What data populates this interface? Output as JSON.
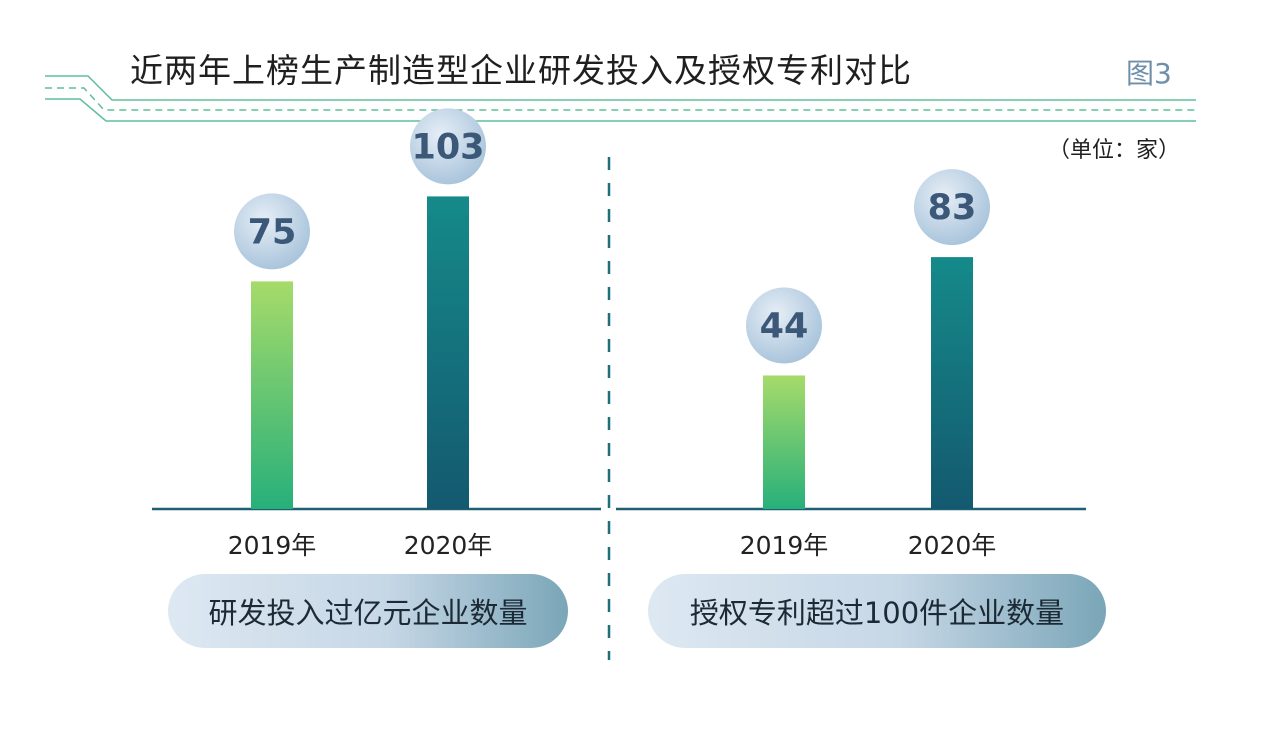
{
  "header": {
    "title": "近两年上榜生产制造型企业研发投入及授权专利对比",
    "figure_label": "图3",
    "unit": "（单位：家）"
  },
  "colors": {
    "bar_2019_top": "#a6db6a",
    "bar_2019_bottom": "#27b07a",
    "bar_2020_top": "#158a8a",
    "bar_2020_bottom": "#14596f",
    "bubble_light": "#e6eef6",
    "bubble_dark": "#a6c2da",
    "value_text": "#3b5878",
    "baseline": "#1d5f73",
    "divider": "#1d6f7a",
    "header_line": "#5fbf9a"
  },
  "chart_data": [
    {
      "type": "bar",
      "categories": [
        "2019年",
        "2020年"
      ],
      "values": [
        75,
        103
      ],
      "data_labels": [
        "75",
        "103"
      ],
      "title": "",
      "xlabel": "研发投入过亿元企业数量",
      "ylabel": "",
      "ylim": [
        0,
        115
      ],
      "grid": false
    },
    {
      "type": "bar",
      "categories": [
        "2019年",
        "2020年"
      ],
      "values": [
        44,
        83
      ],
      "data_labels": [
        "44",
        "83"
      ],
      "title": "",
      "xlabel": "授权专利超过100件企业数量",
      "ylabel": "",
      "ylim": [
        0,
        115
      ],
      "grid": false
    }
  ]
}
